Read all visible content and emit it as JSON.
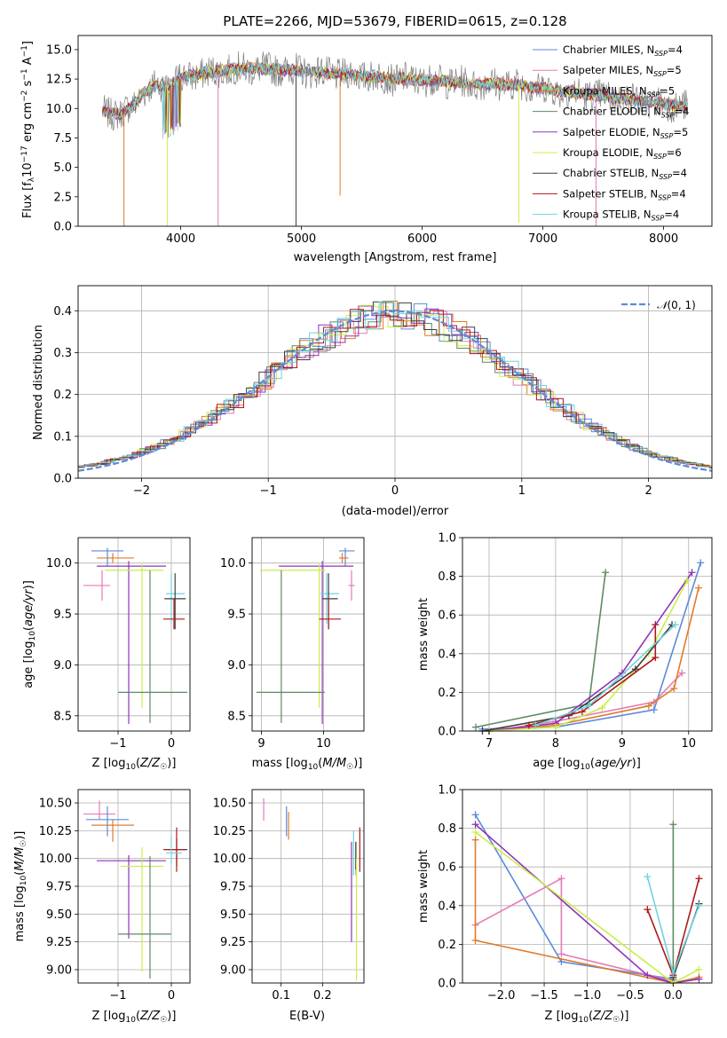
{
  "figure": {
    "title": "PLATE=2266, MJD=53679, FIBERID=0615, z=0.128"
  },
  "colors": {
    "Chabrier MILES": "#5b8bd9",
    "Salpeter MILES": "#e37bb7",
    "Kroupa MILES": "#e07b29",
    "Chabrier ELODIE": "#5c8a64",
    "Salpeter ELODIE": "#8f33b8",
    "Kroupa ELODIE": "#c9ee4a",
    "Chabrier STELIB": "#3e3e3e",
    "Salpeter STELIB": "#b01818",
    "Kroupa STELIB": "#70d3dc",
    "normal_curve": "#5b8bd9",
    "grid": "#b0b0b0"
  },
  "chart_data": [
    {
      "id": "spectrum",
      "type": "line",
      "xlabel": "wavelength [Angstrom, rest frame]",
      "ylabel": "Flux [fλ10⁻¹⁷ erg cm⁻² s⁻¹ A⁻¹]",
      "xlim": [
        3150,
        8400
      ],
      "ylim": [
        0,
        16.2
      ],
      "xticks": [
        4000,
        5000,
        6000,
        7000,
        8000
      ],
      "yticks": [
        0.0,
        2.5,
        5.0,
        7.5,
        10.0,
        12.5,
        15.0
      ],
      "legend": [
        "Chabrier MILES, N_SSP=4",
        "Salpeter MILES, N_SSP=5",
        "Kroupa MILES, N_SSP=5",
        "Chabrier ELODIE, N_SSP=4",
        "Salpeter ELODIE, N_SSP=5",
        "Kroupa ELODIE, N_SSP=6",
        "Chabrier STELIB, N_SSP=4",
        "Salpeter STELIB, N_SSP=4",
        "Kroupa STELIB, N_SSP=4"
      ],
      "legend_position": "right",
      "continuum": {
        "x": [
          3350,
          3500,
          3600,
          3700,
          3800,
          3900,
          4000,
          4100,
          4200,
          4400,
          4600,
          4800,
          5000,
          5200,
          5400,
          5600,
          5800,
          6000,
          6200,
          6400,
          6600,
          6800,
          7000,
          7200,
          7400,
          7600,
          7800,
          8000,
          8200
        ],
        "y": [
          9.8,
          9.5,
          10.2,
          11.4,
          12.0,
          11.9,
          12.6,
          12.8,
          13.0,
          13.3,
          13.4,
          13.3,
          13.2,
          13.0,
          12.9,
          12.7,
          12.5,
          12.4,
          12.3,
          12.1,
          12.1,
          12.0,
          11.7,
          11.4,
          11.2,
          10.9,
          10.7,
          10.4,
          10.1
        ]
      },
      "spikes": [
        {
          "x": 3530,
          "y": 0.0,
          "series": "Kroupa MILES"
        },
        {
          "x": 3890,
          "y": 0.0,
          "series": "Kroupa ELODIE"
        },
        {
          "x": 4310,
          "y": 0.0,
          "series": "Salpeter MILES"
        },
        {
          "x": 4955,
          "y": 0.0,
          "series": "Chabrier STELIB"
        },
        {
          "x": 5320,
          "y": 2.6,
          "series": "Kroupa MILES"
        },
        {
          "x": 6800,
          "y": 0.3,
          "series": "Kroupa ELODIE"
        },
        {
          "x": 7440,
          "y": 0.0,
          "series": "Salpeter MILES"
        }
      ]
    },
    {
      "id": "residuals",
      "type": "histogram",
      "xlabel": "(data-model)/error",
      "ylabel": "Normed distribution",
      "xlim": [
        -2.5,
        2.5
      ],
      "ylim": [
        0,
        0.46
      ],
      "xticks": [
        -2,
        -1,
        0,
        1,
        2
      ],
      "yticks": [
        0.0,
        0.1,
        0.2,
        0.3,
        0.4
      ],
      "legend": [
        "N(0,1)"
      ],
      "legend_position": "top-right",
      "grid": true
    },
    {
      "id": "age_vs_Z",
      "type": "scatter",
      "xlabel": "Z [log10(Z/Z☉)]",
      "ylabel": "age [log10(age/yr)]",
      "xlim": [
        -1.75,
        0.35
      ],
      "ylim": [
        8.35,
        10.25
      ],
      "xticks": [
        -1,
        0
      ],
      "yticks": [
        8.5,
        9.0,
        9.5,
        10.0
      ],
      "grid": true,
      "points": [
        {
          "series": "Chabrier MILES",
          "x": -1.2,
          "y": 10.12,
          "xerr": [
            0.3,
            0.3
          ],
          "yerr": [
            0.15,
            0.03
          ]
        },
        {
          "series": "Kroupa MILES",
          "x": -1.1,
          "y": 10.05,
          "xerr": [
            0.3,
            0.4
          ],
          "yerr": [
            0.05,
            0.05
          ]
        },
        {
          "series": "Salpeter MILES",
          "x": -1.3,
          "y": 9.78,
          "xerr": [
            0.35,
            0.15
          ],
          "yerr": [
            0.15,
            0.15
          ]
        },
        {
          "series": "Salpeter ELODIE",
          "x": -0.8,
          "y": 9.97,
          "xerr": [
            0.6,
            0.7
          ],
          "yerr": [
            1.55,
            0.05
          ]
        },
        {
          "series": "Kroupa ELODIE",
          "x": -0.55,
          "y": 9.93,
          "xerr": [
            0.7,
            0.4
          ],
          "yerr": [
            1.35,
            0.07
          ]
        },
        {
          "series": "Chabrier ELODIE",
          "x": -0.4,
          "y": 8.73,
          "xerr": [
            0.6,
            0.7
          ],
          "yerr": [
            0.3,
            1.2
          ]
        },
        {
          "series": "Kroupa STELIB",
          "x": 0.0,
          "y": 9.7,
          "xerr": [
            0.1,
            0.25
          ],
          "yerr": [
            0.3,
            0.2
          ]
        },
        {
          "series": "Chabrier STELIB",
          "x": 0.07,
          "y": 9.65,
          "xerr": [
            0.2,
            0.2
          ],
          "yerr": [
            0.3,
            0.25
          ]
        },
        {
          "series": "Salpeter STELIB",
          "x": 0.05,
          "y": 9.45,
          "xerr": [
            0.2,
            0.2
          ],
          "yerr": [
            0.1,
            0.2
          ]
        }
      ]
    },
    {
      "id": "age_vs_mass",
      "type": "scatter",
      "xlabel": "mass [log10(M/M☉)]",
      "ylabel": "",
      "xlim": [
        8.85,
        10.65
      ],
      "ylim": [
        8.35,
        10.25
      ],
      "xticks": [
        9,
        10
      ],
      "yticks": [
        8.5,
        9.0,
        9.5,
        10.0
      ],
      "grid": true,
      "points": [
        {
          "series": "Chabrier MILES",
          "x": 10.35,
          "y": 10.12,
          "xerr": [
            0.1,
            0.15
          ],
          "yerr": [
            0.15,
            0.03
          ]
        },
        {
          "series": "Kroupa MILES",
          "x": 10.3,
          "y": 10.05,
          "xerr": [
            0.05,
            0.1
          ],
          "yerr": [
            0.05,
            0.05
          ]
        },
        {
          "series": "Salpeter MILES",
          "x": 10.45,
          "y": 9.78,
          "xerr": [
            0.05,
            0.05
          ],
          "yerr": [
            0.15,
            0.15
          ]
        },
        {
          "series": "Salpeter ELODIE",
          "x": 9.98,
          "y": 9.97,
          "xerr": [
            0.7,
            0.5
          ],
          "yerr": [
            1.55,
            0.05
          ]
        },
        {
          "series": "Kroupa ELODIE",
          "x": 9.93,
          "y": 9.93,
          "xerr": [
            0.95,
            0.1
          ],
          "yerr": [
            1.35,
            0.07
          ]
        },
        {
          "series": "Chabrier ELODIE",
          "x": 9.32,
          "y": 8.73,
          "xerr": [
            0.4,
            0.7
          ],
          "yerr": [
            0.3,
            1.2
          ]
        },
        {
          "series": "Kroupa STELIB",
          "x": 10.05,
          "y": 9.7,
          "xerr": [
            0.1,
            0.2
          ],
          "yerr": [
            0.3,
            0.2
          ]
        },
        {
          "series": "Chabrier STELIB",
          "x": 10.08,
          "y": 9.65,
          "xerr": [
            0.1,
            0.15
          ],
          "yerr": [
            0.3,
            0.25
          ]
        },
        {
          "series": "Salpeter STELIB",
          "x": 10.08,
          "y": 9.45,
          "xerr": [
            0.15,
            0.2
          ],
          "yerr": [
            0.1,
            0.2
          ]
        }
      ]
    },
    {
      "id": "mass_weight_vs_age",
      "type": "line",
      "xlabel": "age [log10(age/yr)]",
      "ylabel": "mass weight",
      "xlim": [
        6.6,
        10.35
      ],
      "ylim": [
        0.0,
        1.0
      ],
      "xticks": [
        7,
        8,
        9,
        10
      ],
      "yticks": [
        0.0,
        0.2,
        0.4,
        0.6,
        0.8,
        1.0
      ],
      "grid": true,
      "series": [
        {
          "name": "Chabrier MILES",
          "x": [
            6.9,
            8.0,
            9.48,
            10.18
          ],
          "y": [
            0.01,
            0.02,
            0.11,
            0.87
          ]
        },
        {
          "name": "Salpeter MILES",
          "x": [
            7.0,
            8.0,
            9.48,
            9.9
          ],
          "y": [
            0.0,
            0.05,
            0.15,
            0.3
          ]
        },
        {
          "name": "Kroupa MILES",
          "x": [
            7.0,
            8.0,
            9.4,
            9.78,
            10.15
          ],
          "y": [
            0.0,
            0.03,
            0.13,
            0.22,
            0.74
          ]
        },
        {
          "name": "Chabrier ELODIE",
          "x": [
            6.8,
            8.5,
            8.75
          ],
          "y": [
            0.02,
            0.14,
            0.82
          ]
        },
        {
          "name": "Salpeter ELODIE",
          "x": [
            7.0,
            8.0,
            9.0,
            10.05
          ],
          "y": [
            0.0,
            0.04,
            0.3,
            0.82
          ]
        },
        {
          "name": "Kroupa ELODIE",
          "x": [
            7.0,
            8.0,
            8.7,
            9.4,
            9.98
          ],
          "y": [
            0.0,
            0.02,
            0.12,
            0.4,
            0.78
          ]
        },
        {
          "name": "Chabrier STELIB",
          "x": [
            6.9,
            8.2,
            9.2,
            9.75
          ],
          "y": [
            0.0,
            0.08,
            0.32,
            0.55
          ]
        },
        {
          "name": "Salpeter STELIB",
          "x": [
            7.6,
            8.4,
            9.5,
            9.5
          ],
          "y": [
            0.03,
            0.1,
            0.38,
            0.55
          ]
        },
        {
          "name": "Kroupa STELIB",
          "x": [
            7.7,
            8.5,
            9.8
          ],
          "y": [
            0.03,
            0.13,
            0.55
          ]
        }
      ]
    },
    {
      "id": "mass_vs_Z",
      "type": "scatter",
      "xlabel": "Z [log10(Z/Z☉)]",
      "ylabel": "mass [log10(M/M☉)]",
      "xlim": [
        -1.75,
        0.35
      ],
      "ylim": [
        8.88,
        10.62
      ],
      "xticks": [
        -1,
        0
      ],
      "yticks": [
        9.0,
        9.25,
        9.5,
        9.75,
        10.0,
        10.25,
        10.5
      ],
      "grid": true,
      "points": [
        {
          "series": "Salpeter MILES",
          "x": -1.35,
          "y": 10.4,
          "xerr": [
            0.3,
            0.3
          ],
          "yerr": [
            0.05,
            0.12
          ]
        },
        {
          "series": "Chabrier MILES",
          "x": -1.2,
          "y": 10.35,
          "xerr": [
            0.4,
            0.4
          ],
          "yerr": [
            0.15,
            0.12
          ]
        },
        {
          "series": "Kroupa MILES",
          "x": -1.1,
          "y": 10.3,
          "xerr": [
            0.4,
            0.4
          ],
          "yerr": [
            0.15,
            0.05
          ]
        },
        {
          "series": "Salpeter ELODIE",
          "x": -0.8,
          "y": 9.98,
          "xerr": [
            0.6,
            0.7
          ],
          "yerr": [
            0.7,
            0.05
          ]
        },
        {
          "series": "Kroupa ELODIE",
          "x": -0.55,
          "y": 9.93,
          "xerr": [
            0.4,
            0.4
          ],
          "yerr": [
            0.95,
            0.17
          ]
        },
        {
          "series": "Chabrier ELODIE",
          "x": -0.4,
          "y": 9.32,
          "xerr": [
            0.6,
            0.4
          ],
          "yerr": [
            0.4,
            0.7
          ]
        },
        {
          "series": "Chabrier STELIB",
          "x": 0.1,
          "y": 10.08,
          "xerr": [
            0.2,
            0.2
          ],
          "yerr": [
            0.15,
            0.1
          ]
        },
        {
          "series": "Salpeter STELIB",
          "x": 0.1,
          "y": 10.08,
          "xerr": [
            0.25,
            0.15
          ],
          "yerr": [
            0.2,
            0.2
          ]
        },
        {
          "series": "Kroupa STELIB",
          "x": 0.0,
          "y": 10.05,
          "xerr": [
            0.1,
            0.2
          ],
          "yerr": [
            0.1,
            0.15
          ]
        }
      ]
    },
    {
      "id": "mass_vs_ebv",
      "type": "scatter",
      "xlabel": "E(B-V)",
      "ylabel": "",
      "xlim": [
        0.03,
        0.3
      ],
      "ylim": [
        8.88,
        10.62
      ],
      "xticks": [
        0.1,
        0.2
      ],
      "yticks": [
        9.0,
        9.25,
        9.5,
        9.75,
        10.0,
        10.25,
        10.5
      ],
      "grid": true,
      "points": [
        {
          "series": "Salpeter MILES",
          "x": 0.058,
          "y": 10.44,
          "xerr": [
            0,
            0
          ],
          "yerr": [
            0.1,
            0.1
          ]
        },
        {
          "series": "Chabrier MILES",
          "x": 0.113,
          "y": 10.35,
          "xerr": [
            0,
            0
          ],
          "yerr": [
            0.15,
            0.12
          ]
        },
        {
          "series": "Kroupa MILES",
          "x": 0.118,
          "y": 10.32,
          "xerr": [
            0,
            0
          ],
          "yerr": [
            0.15,
            0.1
          ]
        },
        {
          "series": "Salpeter ELODIE",
          "x": 0.27,
          "y": 9.7,
          "xerr": [
            0,
            0
          ],
          "yerr": [
            0.45,
            0.45
          ]
        },
        {
          "series": "Kroupa STELIB",
          "x": 0.275,
          "y": 9.95,
          "xerr": [
            0,
            0
          ],
          "yerr": [
            0.1,
            0.3
          ]
        },
        {
          "series": "Chabrier STELIB",
          "x": 0.28,
          "y": 10.05,
          "xerr": [
            0,
            0
          ],
          "yerr": [
            0.15,
            0.1
          ]
        },
        {
          "series": "Chabrier ELODIE",
          "x": 0.281,
          "y": 10.0,
          "xerr": [
            0,
            0
          ],
          "yerr": [
            0.15,
            0.15
          ]
        },
        {
          "series": "Kroupa ELODIE",
          "x": 0.282,
          "y": 9.45,
          "xerr": [
            0,
            0
          ],
          "yerr": [
            0.55,
            0.55
          ]
        },
        {
          "series": "Salpeter STELIB",
          "x": 0.29,
          "y": 10.08,
          "xerr": [
            0,
            0
          ],
          "yerr": [
            0.2,
            0.2
          ]
        }
      ]
    },
    {
      "id": "mass_weight_vs_Z",
      "type": "line",
      "xlabel": "Z [log10(Z/Z☉)]",
      "ylabel": "mass weight",
      "xlim": [
        -2.45,
        0.45
      ],
      "ylim": [
        0.0,
        1.0
      ],
      "xticks": [
        -2.0,
        -1.5,
        -1.0,
        -0.5,
        0.0
      ],
      "yticks": [
        0.0,
        0.2,
        0.4,
        0.6,
        0.8,
        1.0
      ],
      "grid": true,
      "series": [
        {
          "name": "Chabrier MILES",
          "x": [
            -2.3,
            -1.3,
            0.0
          ],
          "y": [
            0.87,
            0.11,
            0.02
          ]
        },
        {
          "name": "Salpeter MILES",
          "x": [
            -2.3,
            -1.3,
            -1.3,
            0.0
          ],
          "y": [
            0.3,
            0.54,
            0.15,
            0.01
          ]
        },
        {
          "name": "Kroupa MILES",
          "x": [
            -2.3,
            -2.3,
            0.0,
            0.3
          ],
          "y": [
            0.74,
            0.22,
            0.0,
            0.03
          ]
        },
        {
          "name": "Chabrier ELODIE",
          "x": [
            0.0,
            0.0
          ],
          "y": [
            0.82,
            0.02
          ]
        },
        {
          "name": "Salpeter ELODIE",
          "x": [
            -2.3,
            -0.3,
            0.0,
            0.3
          ],
          "y": [
            0.82,
            0.04,
            0.0,
            0.02
          ]
        },
        {
          "name": "Kroupa ELODIE",
          "x": [
            -2.3,
            0.0,
            0.3
          ],
          "y": [
            0.78,
            0.0,
            0.07
          ]
        },
        {
          "name": "Chabrier STELIB",
          "x": [
            0.0,
            0.3
          ],
          "y": [
            0.03,
            0.41
          ]
        },
        {
          "name": "Salpeter STELIB",
          "x": [
            -0.3,
            0.0,
            0.3
          ],
          "y": [
            0.38,
            0.04,
            0.54
          ]
        },
        {
          "name": "Kroupa STELIB",
          "x": [
            -0.3,
            0.0,
            0.3
          ],
          "y": [
            0.55,
            0.05,
            0.4
          ]
        }
      ]
    }
  ]
}
